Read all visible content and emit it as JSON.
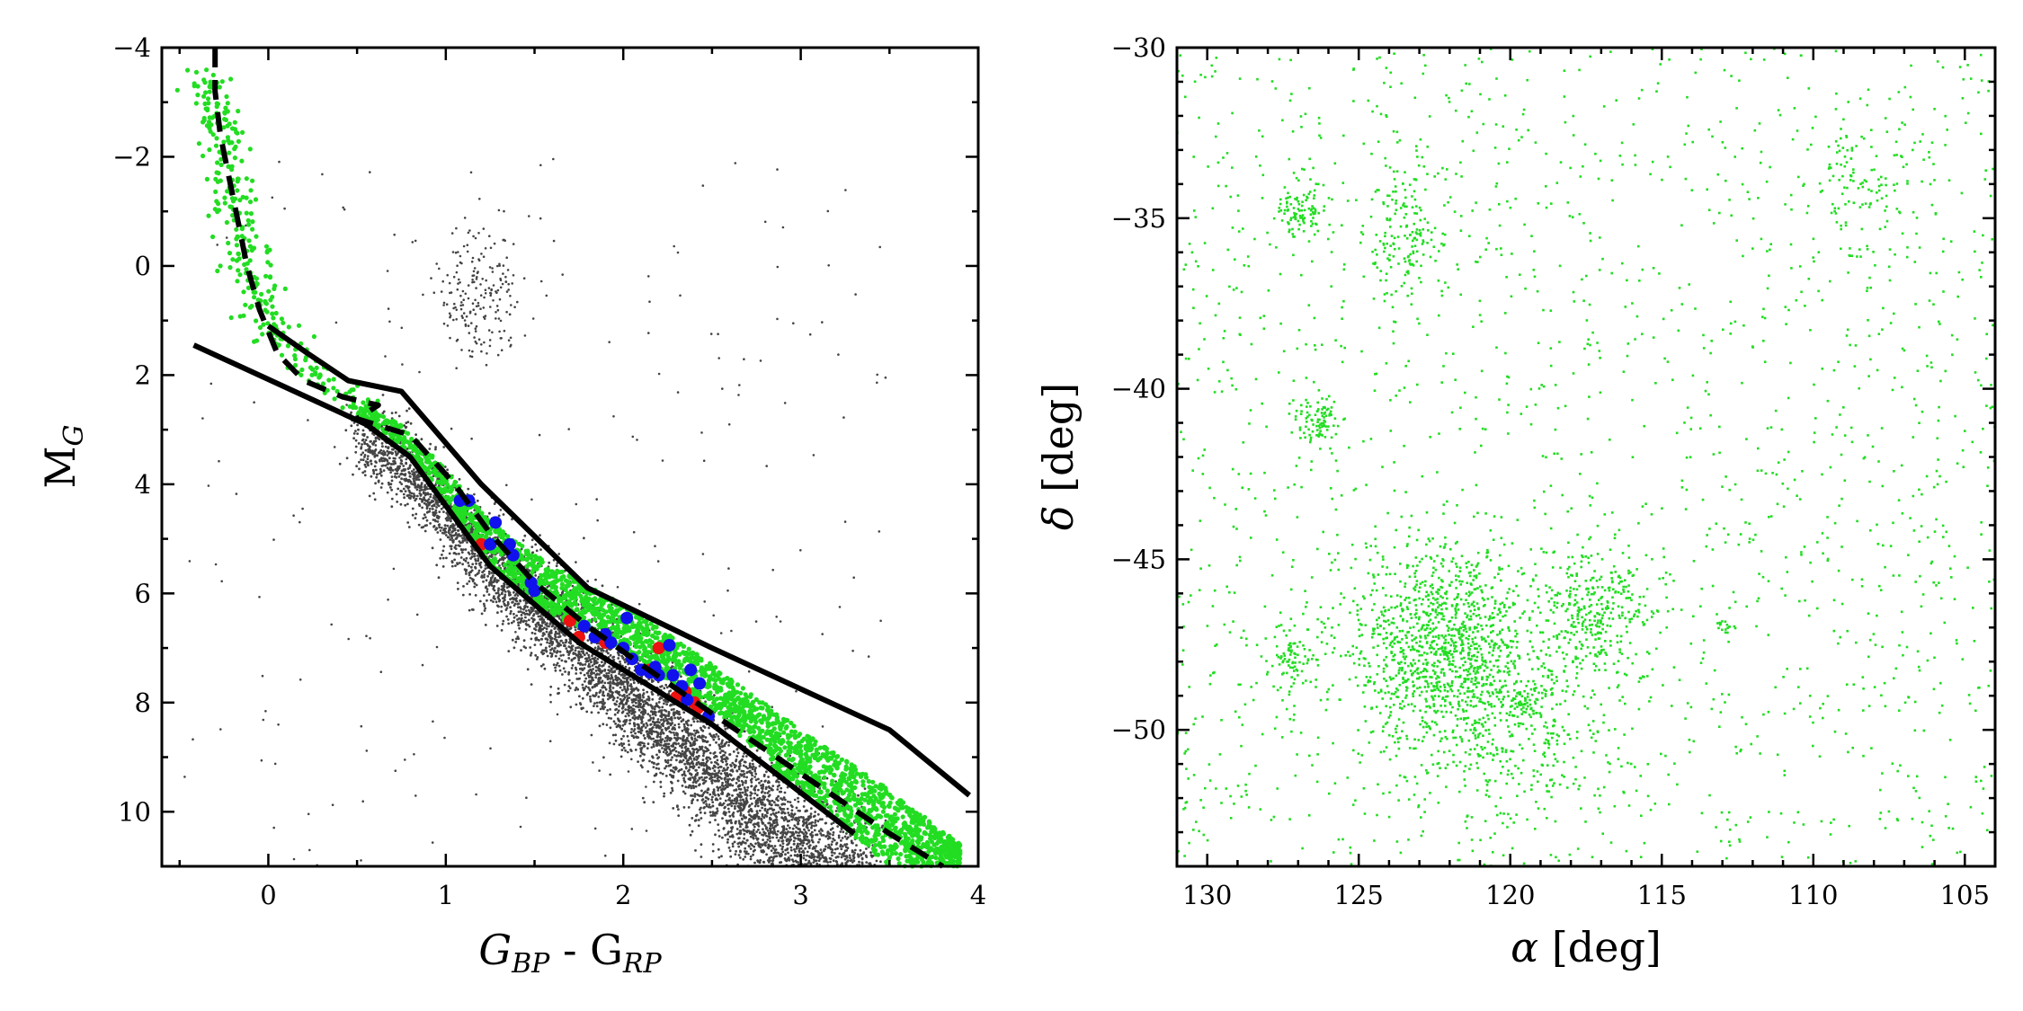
{
  "colors": {
    "background_stars": "#444444",
    "members": "#22dd22",
    "red_points": "#ee1111",
    "blue_points": "#1111ee",
    "isochrone": "#000000",
    "sky_points": "#22dd22"
  },
  "chart_data": [
    {
      "type": "scatter",
      "name": "color-magnitude-diagram",
      "xlabel": {
        "main": "G",
        "sub1": "BP",
        "mid": " - G",
        "sub2": "RP"
      },
      "ylabel": {
        "main": "M",
        "sub": "G"
      },
      "xlim": [
        -0.6,
        4.0
      ],
      "ylim": [
        11.0,
        -4.0
      ],
      "y_inverted": true,
      "xticks": [
        0,
        1,
        2,
        3,
        4
      ],
      "xtick_labels": [
        "0",
        "1",
        "2",
        "3",
        "4"
      ],
      "yticks": [
        -4,
        -2,
        0,
        2,
        4,
        6,
        8,
        10
      ],
      "ytick_labels": [
        "−4",
        "−2",
        "0",
        "2",
        "4",
        "6",
        "8",
        "10"
      ],
      "series": [
        {
          "name": "field stars",
          "kind": "dense-cloud",
          "color": "#444444",
          "main_sequence_ridge": [
            [
              0.5,
              2.7
            ],
            [
              0.8,
              3.4
            ],
            [
              1.2,
              4.9
            ],
            [
              1.6,
              6.2
            ],
            [
              2.0,
              7.4
            ],
            [
              2.4,
              8.6
            ],
            [
              2.8,
              9.9
            ],
            [
              3.3,
              11.0
            ]
          ],
          "ridge_scatter_mag": 0.45,
          "giant_clump": {
            "x": 1.2,
            "y": 0.5
          },
          "count_estimate": 6000
        },
        {
          "name": "cluster members",
          "kind": "band",
          "color": "#22dd22",
          "upper_branch": [
            [
              -0.35,
              -3.6
            ],
            [
              -0.3,
              -2.8
            ],
            [
              -0.2,
              -1.2
            ],
            [
              -0.1,
              0.0
            ],
            [
              0.0,
              1.0
            ],
            [
              0.2,
              1.8
            ],
            [
              0.5,
              2.5
            ]
          ],
          "band_lower": [
            [
              0.5,
              2.7
            ],
            [
              0.75,
              3.3
            ],
            [
              1.0,
              4.3
            ],
            [
              1.25,
              5.5
            ],
            [
              1.6,
              6.4
            ],
            [
              2.0,
              7.0
            ],
            [
              2.5,
              8.2
            ],
            [
              3.0,
              9.6
            ],
            [
              3.5,
              11.0
            ]
          ],
          "band_upper": [
            [
              0.5,
              2.5
            ],
            [
              0.75,
              2.9
            ],
            [
              1.0,
              3.7
            ],
            [
              1.25,
              4.7
            ],
            [
              1.6,
              5.5
            ],
            [
              2.0,
              6.2
            ],
            [
              2.5,
              7.3
            ],
            [
              3.0,
              8.5
            ],
            [
              3.5,
              9.6
            ],
            [
              3.9,
              10.6
            ]
          ],
          "count_estimate": 2600
        },
        {
          "name": "red points",
          "color": "#ee1111",
          "points": [
            [
              1.2,
              5.1
            ],
            [
              1.7,
              6.5
            ],
            [
              1.75,
              6.8
            ],
            [
              1.9,
              6.9
            ],
            [
              2.15,
              7.4
            ],
            [
              2.2,
              7.0
            ],
            [
              2.3,
              7.9
            ],
            [
              2.35,
              7.8
            ],
            [
              2.4,
              8.0
            ],
            [
              2.42,
              8.1
            ]
          ]
        },
        {
          "name": "blue points",
          "color": "#1111ee",
          "points": [
            [
              1.08,
              4.3
            ],
            [
              1.13,
              4.3
            ],
            [
              1.28,
              4.7
            ],
            [
              1.25,
              5.1
            ],
            [
              1.36,
              5.1
            ],
            [
              1.38,
              5.3
            ],
            [
              1.48,
              5.8
            ],
            [
              1.5,
              5.95
            ],
            [
              1.78,
              6.6
            ],
            [
              1.84,
              6.8
            ],
            [
              1.9,
              6.75
            ],
            [
              1.93,
              6.9
            ],
            [
              2.02,
              6.45
            ],
            [
              2.0,
              7.0
            ],
            [
              2.05,
              7.2
            ],
            [
              2.1,
              7.4
            ],
            [
              2.15,
              7.45
            ],
            [
              2.18,
              7.35
            ],
            [
              2.26,
              6.95
            ],
            [
              2.28,
              7.5
            ],
            [
              2.33,
              7.7
            ],
            [
              2.36,
              7.95
            ],
            [
              2.38,
              7.4
            ],
            [
              2.43,
              7.65
            ],
            [
              2.48,
              8.25
            ],
            [
              2.2,
              7.5
            ]
          ]
        }
      ],
      "lines": [
        {
          "name": "isochrone",
          "style": "dashed",
          "points": [
            [
              -0.3,
              -4.0
            ],
            [
              -0.3,
              -3.2
            ],
            [
              -0.27,
              -2.4
            ],
            [
              -0.22,
              -1.6
            ],
            [
              -0.17,
              -0.8
            ],
            [
              -0.12,
              0.0
            ],
            [
              -0.05,
              0.8
            ],
            [
              0.05,
              1.6
            ],
            [
              0.2,
              2.1
            ],
            [
              0.42,
              2.4
            ],
            [
              0.55,
              2.5
            ],
            [
              0.62,
              2.55
            ],
            [
              0.5,
              2.8
            ],
            [
              0.8,
              3.1
            ],
            [
              1.05,
              4.0
            ],
            [
              1.25,
              4.9
            ],
            [
              1.5,
              5.8
            ],
            [
              1.8,
              6.6
            ],
            [
              2.1,
              7.3
            ],
            [
              2.5,
              8.2
            ],
            [
              3.0,
              9.3
            ],
            [
              3.5,
              10.4
            ],
            [
              3.8,
              11.0
            ]
          ]
        },
        {
          "name": "upper selection boundary",
          "style": "solid",
          "points": [
            [
              0.0,
              1.1
            ],
            [
              0.22,
              1.6
            ],
            [
              0.45,
              2.1
            ],
            [
              0.75,
              2.3
            ],
            [
              1.2,
              4.0
            ],
            [
              1.8,
              5.9
            ],
            [
              2.5,
              7.0
            ],
            [
              3.5,
              8.5
            ],
            [
              3.95,
              9.7
            ]
          ]
        },
        {
          "name": "lower selection boundary",
          "style": "solid",
          "points": [
            [
              -0.42,
              1.45
            ],
            [
              0.55,
              2.9
            ],
            [
              0.8,
              3.5
            ],
            [
              1.25,
              5.5
            ],
            [
              1.75,
              6.9
            ],
            [
              2.5,
              8.4
            ],
            [
              3.3,
              10.4
            ]
          ]
        }
      ]
    },
    {
      "type": "scatter",
      "name": "sky-distribution",
      "xlabel": {
        "greek": "α",
        "unit": " [deg]"
      },
      "ylabel": {
        "greek": "δ",
        "unit": " [deg]"
      },
      "xlim": [
        131,
        104
      ],
      "ylim": [
        -54,
        -30
      ],
      "x_inverted": true,
      "xticks": [
        130,
        125,
        120,
        115,
        110,
        105
      ],
      "xtick_labels": [
        "130",
        "125",
        "120",
        "115",
        "110",
        "105"
      ],
      "yticks": [
        -30,
        -35,
        -40,
        -45,
        -50
      ],
      "ytick_labels": [
        "−30",
        "−35",
        "−40",
        "−45",
        "−50"
      ],
      "series": [
        {
          "name": "members on sky",
          "color": "#22dd22",
          "uniform_count_estimate": 1700,
          "overdensities": [
            {
              "ra": 122.3,
              "dec": -47.5,
              "sigma_ra": 1.6,
              "sigma_dec": 1.4,
              "n": 1100
            },
            {
              "ra": 117.2,
              "dec": -46.5,
              "sigma_ra": 0.9,
              "sigma_dec": 0.9,
              "n": 320
            },
            {
              "ra": 120.2,
              "dec": -50.0,
              "sigma_ra": 1.8,
              "sigma_dec": 1.5,
              "n": 380
            },
            {
              "ra": 126.9,
              "dec": -34.8,
              "sigma_ra": 0.4,
              "sigma_dec": 0.4,
              "n": 90
            },
            {
              "ra": 126.3,
              "dec": -41.0,
              "sigma_ra": 0.4,
              "sigma_dec": 0.4,
              "n": 90
            },
            {
              "ra": 123.4,
              "dec": -35.5,
              "sigma_ra": 0.7,
              "sigma_dec": 1.2,
              "n": 170
            },
            {
              "ra": 127.3,
              "dec": -48.0,
              "sigma_ra": 0.4,
              "sigma_dec": 0.5,
              "n": 80
            },
            {
              "ra": 119.5,
              "dec": -49.2,
              "sigma_ra": 0.3,
              "sigma_dec": 0.3,
              "n": 60
            },
            {
              "ra": 108.5,
              "dec": -34.0,
              "sigma_ra": 1.0,
              "sigma_dec": 1.0,
              "n": 110
            },
            {
              "ra": 113.0,
              "dec": -47.0,
              "sigma_ra": 0.2,
              "sigma_dec": 0.1,
              "n": 15
            }
          ]
        }
      ]
    }
  ]
}
